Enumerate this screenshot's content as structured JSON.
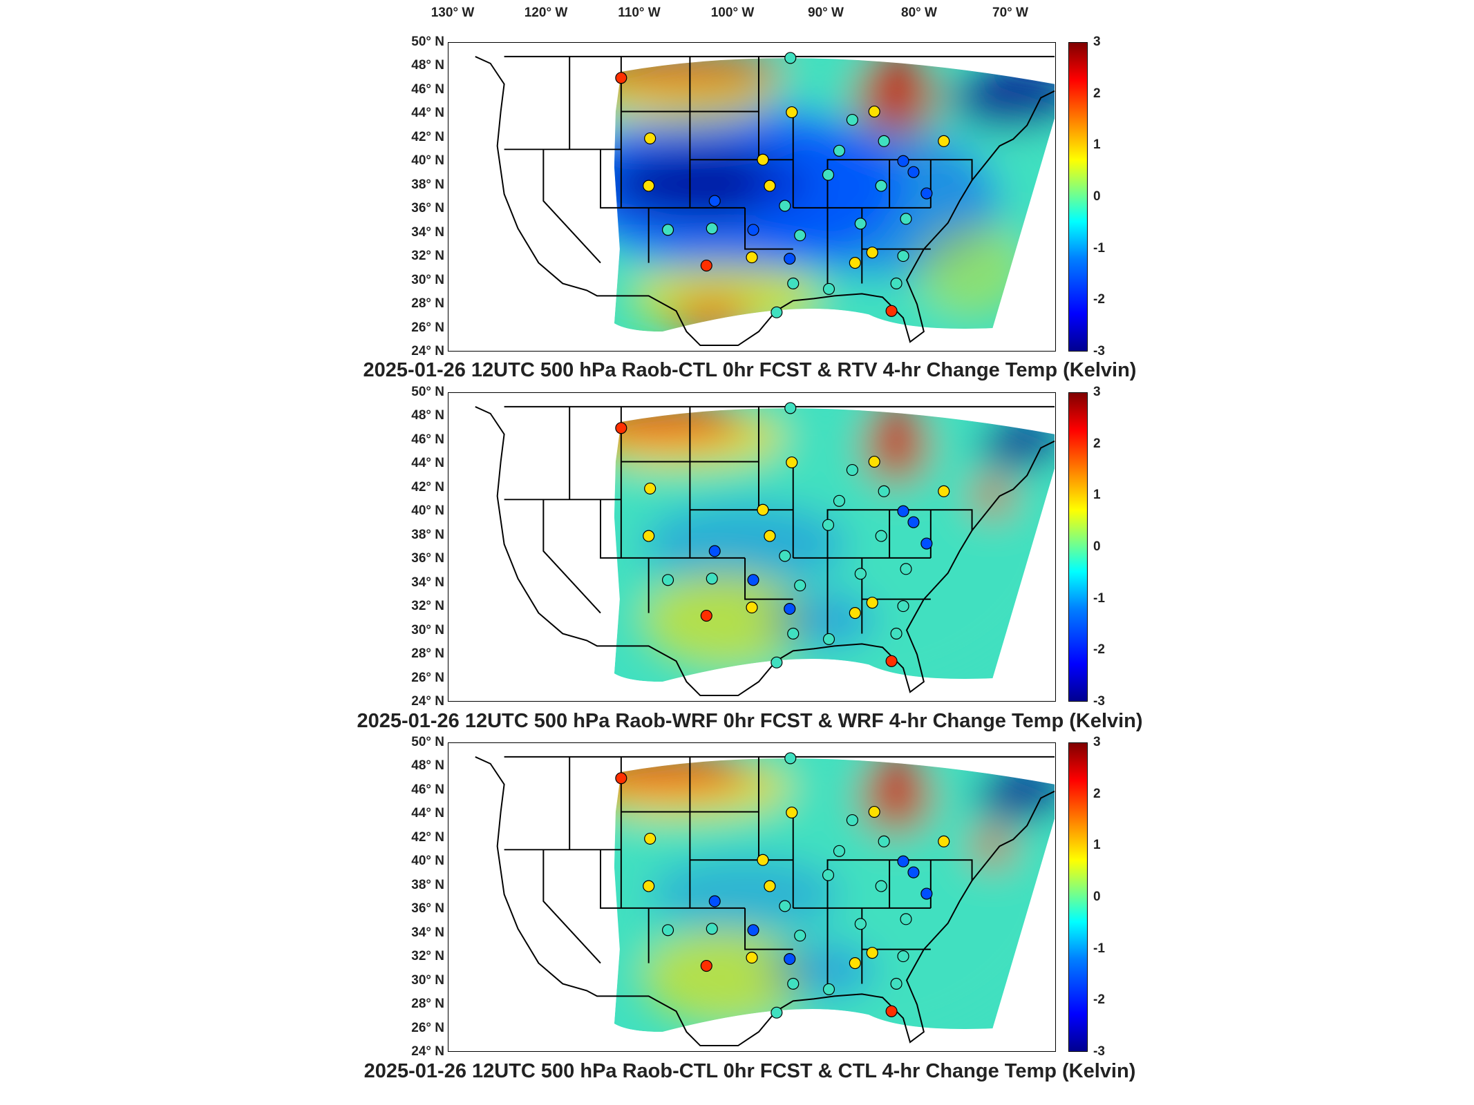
{
  "longitude_labels": [
    "130° W",
    "120° W",
    "110° W",
    "100° W",
    "90° W",
    "80° W",
    "70° W"
  ],
  "latitude_labels": [
    "50° N",
    "48° N",
    "46° N",
    "44° N",
    "42° N",
    "40° N",
    "38° N",
    "36° N",
    "34° N",
    "32° N",
    "30° N",
    "28° N",
    "26° N",
    "24° N"
  ],
  "colorbar": {
    "ticks": [
      "3",
      "2",
      "1",
      "0",
      "-1",
      "-2",
      "-3"
    ],
    "range": [
      -3,
      3
    ],
    "colormap": "jet"
  },
  "panels": [
    {
      "title": "2025-01-26 12UTC 500 hPa Raob-CTL 0hr FCST & RTV 4-hr Change Temp (Kelvin)"
    },
    {
      "title": "2025-01-26 12UTC 500 hPa Raob-WRF 0hr FCST & WRF 4-hr Change Temp (Kelvin)"
    },
    {
      "title": "2025-01-26 12UTC 500 hPa Raob-CTL 0hr FCST & CTL 4-hr Change Temp (Kelvin)"
    }
  ],
  "colors": {
    "very_cold": "#00008f",
    "cold": "#0050ff",
    "neutral": "#40e0c0",
    "warm": "#ffe000",
    "hot": "#ff3000",
    "very_hot": "#8b0000"
  }
}
